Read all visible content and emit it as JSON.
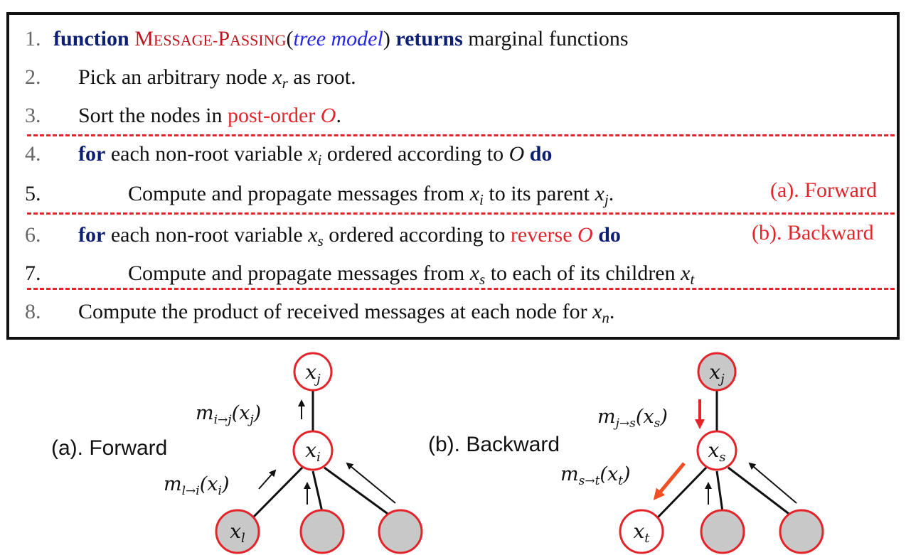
{
  "algorithm": {
    "lines": [
      {
        "num": "1.",
        "kw_function": "function",
        "name_first": "M",
        "name_rest": "ESSAGE-",
        "name_first2": "P",
        "name_rest2": "ASSING",
        "open": "(",
        "arg": "tree model",
        "close": ")",
        "kw_returns": "returns",
        "rest": "marginal functions"
      },
      {
        "num": "2.",
        "text": "Pick an arbitrary node",
        "var": "x",
        "var_sub": "r",
        "tail": "as root."
      },
      {
        "num": "3.",
        "text": "Sort the nodes in",
        "red_text": "post-order",
        "red_var": "O",
        "tail": "."
      },
      {
        "num": "4.",
        "kw_for": "for",
        "text": "each non-root variable",
        "var": "x",
        "var_sub": "i",
        "mid": "ordered according to",
        "var2": "O",
        "kw_do": "do"
      },
      {
        "num": "5.",
        "text": "Compute and propagate messages from",
        "var": "x",
        "var_sub": "i",
        "mid": "to its parent",
        "var2": "x",
        "var2_sub": "j",
        "tail": "."
      },
      {
        "num": "6.",
        "kw_for": "for",
        "text": "each non-root variable",
        "var": "x",
        "var_sub": "s",
        "mid": "ordered according to",
        "red_text": "reverse",
        "red_var": "O",
        "kw_do": "do"
      },
      {
        "num": "7.",
        "text": "Compute and propagate messages from",
        "var": "x",
        "var_sub": "s",
        "mid": "to each of its children",
        "var2": "x",
        "var2_sub": "t"
      },
      {
        "num": "8.",
        "text": "Compute the product of received messages at each node for",
        "var": "x",
        "var_sub": "n",
        "tail": "."
      }
    ],
    "tag_forward": "(a). Forward",
    "tag_backward": "(b). Backward"
  },
  "forward_diagram": {
    "label": "(a). Forward",
    "node_top": "x",
    "node_top_sub": "j",
    "node_mid": "x",
    "node_mid_sub": "i",
    "node_leaf": "x",
    "node_leaf_sub": "l",
    "msg_up": "m",
    "msg_up_sub": "i→j",
    "msg_up_arg": "(x",
    "msg_up_arg_sub": "j",
    "msg_up_close": ")",
    "msg_in": "m",
    "msg_in_sub": "l→i",
    "msg_in_arg": "(x",
    "msg_in_arg_sub": "i",
    "msg_in_close": ")"
  },
  "backward_diagram": {
    "label": "(b). Backward",
    "node_top": "x",
    "node_top_sub": "j",
    "node_mid": "x",
    "node_mid_sub": "s",
    "node_leaf": "x",
    "node_leaf_sub": "t",
    "msg_down": "m",
    "msg_down_sub": "j→s",
    "msg_down_arg": "(x",
    "msg_down_arg_sub": "s",
    "msg_down_close": ")",
    "msg_out": "m",
    "msg_out_sub": "s→t",
    "msg_out_arg": "(x",
    "msg_out_arg_sub": "t",
    "msg_out_close": ")"
  },
  "colors": {
    "accent_red": "#e3242b",
    "keyword_navy": "#0d1f73",
    "arg_blue": "#2525e6",
    "node_gray": "#c8c8c8",
    "arrow_orange": "#f04e23"
  }
}
